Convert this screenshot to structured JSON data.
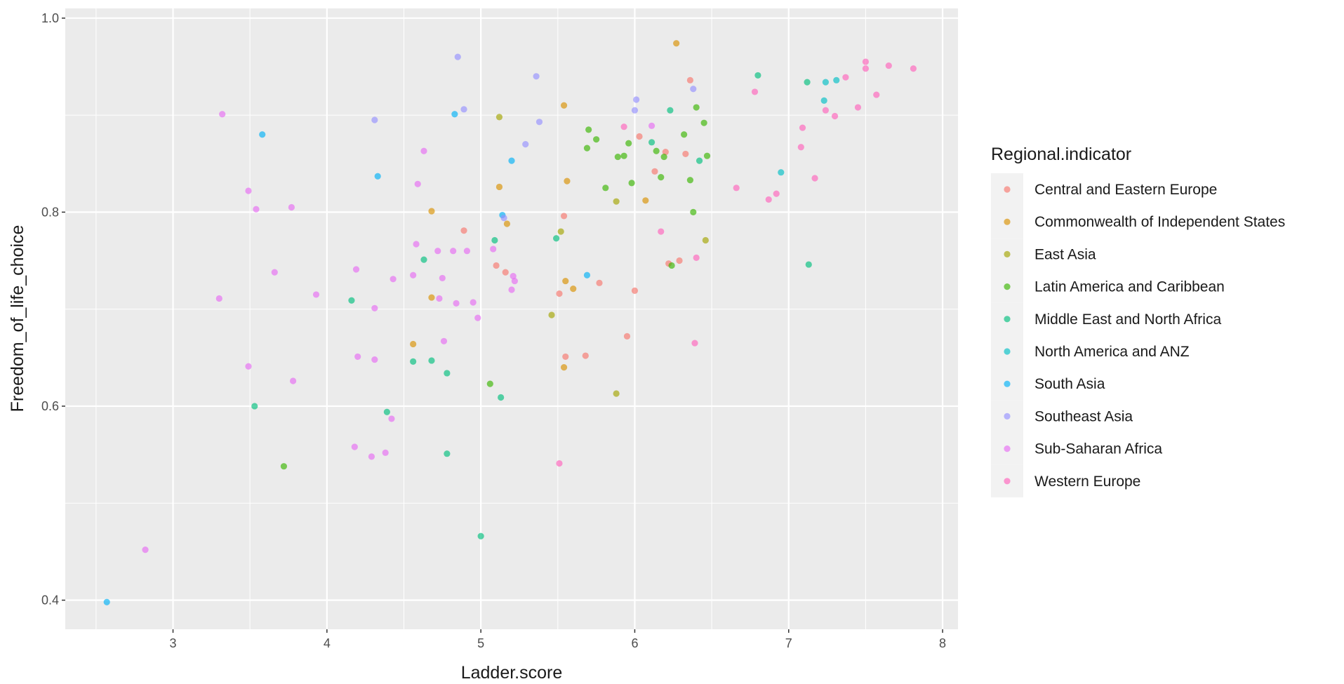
{
  "chart_data": {
    "type": "scatter",
    "title": "",
    "xlabel": "Ladder.score",
    "ylabel": "Freedom_of_life_choice",
    "xlim": [
      2.3,
      8.1
    ],
    "ylim": [
      0.37,
      1.01
    ],
    "x_ticks": [
      3,
      4,
      5,
      6,
      7,
      8
    ],
    "y_ticks": [
      0.4,
      0.6,
      0.8,
      1.0
    ],
    "y_tick_labels": [
      "0.4",
      "0.6",
      "0.8",
      "1.0"
    ],
    "grid": true,
    "legend_position": "right",
    "legend_title": "Regional.indicator",
    "series": [
      {
        "name": "Central and Eastern Europe",
        "color": "#F8766D",
        "points": [
          [
            6.36,
            0.936
          ],
          [
            5.1,
            0.745
          ],
          [
            5.16,
            0.738
          ],
          [
            5.54,
            0.796
          ],
          [
            6.03,
            0.878
          ],
          [
            6.13,
            0.842
          ],
          [
            6.2,
            0.862
          ],
          [
            6.33,
            0.86
          ],
          [
            5.77,
            0.727
          ],
          [
            5.51,
            0.716
          ],
          [
            5.55,
            0.651
          ],
          [
            5.68,
            0.652
          ],
          [
            5.95,
            0.672
          ],
          [
            6.0,
            0.719
          ],
          [
            6.22,
            0.747
          ],
          [
            6.29,
            0.75
          ],
          [
            4.89,
            0.781
          ]
        ]
      },
      {
        "name": "Commonwealth of Independent States",
        "color": "#D89000",
        "points": [
          [
            6.27,
            0.974
          ],
          [
            5.54,
            0.91
          ],
          [
            5.12,
            0.826
          ],
          [
            5.56,
            0.832
          ],
          [
            5.17,
            0.788
          ],
          [
            6.07,
            0.812
          ],
          [
            4.68,
            0.801
          ],
          [
            5.55,
            0.729
          ],
          [
            5.6,
            0.721
          ],
          [
            4.68,
            0.712
          ],
          [
            4.56,
            0.664
          ],
          [
            5.54,
            0.64
          ]
        ]
      },
      {
        "name": "East Asia",
        "color": "#A3A500",
        "points": [
          [
            5.12,
            0.898
          ],
          [
            5.88,
            0.811
          ],
          [
            5.52,
            0.78
          ],
          [
            6.46,
            0.771
          ],
          [
            5.46,
            0.694
          ],
          [
            5.88,
            0.613
          ]
        ]
      },
      {
        "name": "Latin America and Caribbean",
        "color": "#39B600",
        "points": [
          [
            5.7,
            0.885
          ],
          [
            5.75,
            0.875
          ],
          [
            5.69,
            0.866
          ],
          [
            5.89,
            0.857
          ],
          [
            5.93,
            0.858
          ],
          [
            5.96,
            0.871
          ],
          [
            5.98,
            0.83
          ],
          [
            6.14,
            0.863
          ],
          [
            6.17,
            0.836
          ],
          [
            6.19,
            0.857
          ],
          [
            6.32,
            0.88
          ],
          [
            6.36,
            0.833
          ],
          [
            6.4,
            0.908
          ],
          [
            6.45,
            0.892
          ],
          [
            6.47,
            0.858
          ],
          [
            5.81,
            0.825
          ],
          [
            6.38,
            0.8
          ],
          [
            6.24,
            0.745
          ],
          [
            5.06,
            0.623
          ],
          [
            3.72,
            0.538
          ]
        ]
      },
      {
        "name": "Middle East and North Africa",
        "color": "#00BF7D",
        "points": [
          [
            6.8,
            0.941
          ],
          [
            7.12,
            0.934
          ],
          [
            6.23,
            0.905
          ],
          [
            6.11,
            0.872
          ],
          [
            6.42,
            0.853
          ],
          [
            5.09,
            0.771
          ],
          [
            5.49,
            0.773
          ],
          [
            4.63,
            0.751
          ],
          [
            4.16,
            0.709
          ],
          [
            4.56,
            0.646
          ],
          [
            4.68,
            0.647
          ],
          [
            4.78,
            0.634
          ],
          [
            5.13,
            0.609
          ],
          [
            3.53,
            0.6
          ],
          [
            4.39,
            0.594
          ],
          [
            4.78,
            0.551
          ],
          [
            5.0,
            0.466
          ],
          [
            7.13,
            0.746
          ]
        ]
      },
      {
        "name": "North America and ANZ",
        "color": "#00BFC4",
        "points": [
          [
            7.24,
            0.934
          ],
          [
            7.31,
            0.936
          ],
          [
            7.23,
            0.915
          ],
          [
            6.95,
            0.841
          ]
        ]
      },
      {
        "name": "South Asia",
        "color": "#00B0F6",
        "points": [
          [
            3.58,
            0.88
          ],
          [
            4.33,
            0.837
          ],
          [
            4.83,
            0.901
          ],
          [
            5.2,
            0.853
          ],
          [
            5.14,
            0.797
          ],
          [
            5.69,
            0.735
          ],
          [
            2.57,
            0.398
          ]
        ]
      },
      {
        "name": "Southeast Asia",
        "color": "#9590FF",
        "points": [
          [
            4.85,
            0.96
          ],
          [
            5.36,
            0.94
          ],
          [
            4.31,
            0.895
          ],
          [
            4.89,
            0.906
          ],
          [
            5.38,
            0.893
          ],
          [
            5.29,
            0.87
          ],
          [
            6.01,
            0.916
          ],
          [
            6.0,
            0.905
          ],
          [
            6.38,
            0.927
          ],
          [
            5.15,
            0.794
          ]
        ]
      },
      {
        "name": "Sub-Saharan Africa",
        "color": "#E76BF3",
        "points": [
          [
            3.32,
            0.901
          ],
          [
            3.49,
            0.822
          ],
          [
            3.54,
            0.803
          ],
          [
            3.77,
            0.805
          ],
          [
            4.63,
            0.863
          ],
          [
            4.59,
            0.829
          ],
          [
            4.58,
            0.767
          ],
          [
            4.72,
            0.76
          ],
          [
            4.82,
            0.76
          ],
          [
            4.91,
            0.76
          ],
          [
            5.08,
            0.762
          ],
          [
            5.21,
            0.734
          ],
          [
            5.22,
            0.729
          ],
          [
            4.19,
            0.741
          ],
          [
            3.66,
            0.738
          ],
          [
            4.43,
            0.731
          ],
          [
            4.56,
            0.735
          ],
          [
            4.73,
            0.711
          ],
          [
            4.75,
            0.732
          ],
          [
            3.93,
            0.715
          ],
          [
            3.3,
            0.711
          ],
          [
            4.31,
            0.701
          ],
          [
            4.84,
            0.706
          ],
          [
            4.95,
            0.707
          ],
          [
            4.98,
            0.691
          ],
          [
            5.2,
            0.72
          ],
          [
            4.76,
            0.667
          ],
          [
            4.2,
            0.651
          ],
          [
            4.31,
            0.648
          ],
          [
            3.49,
            0.641
          ],
          [
            3.78,
            0.626
          ],
          [
            4.42,
            0.587
          ],
          [
            4.18,
            0.558
          ],
          [
            4.38,
            0.552
          ],
          [
            4.29,
            0.548
          ],
          [
            2.82,
            0.452
          ],
          [
            6.11,
            0.889
          ]
        ]
      },
      {
        "name": "Western Europe",
        "color": "#FF62BC",
        "points": [
          [
            7.5,
            0.955
          ],
          [
            7.5,
            0.948
          ],
          [
            7.65,
            0.951
          ],
          [
            7.81,
            0.948
          ],
          [
            7.37,
            0.939
          ],
          [
            7.57,
            0.921
          ],
          [
            7.45,
            0.908
          ],
          [
            7.24,
            0.905
          ],
          [
            7.3,
            0.899
          ],
          [
            6.78,
            0.924
          ],
          [
            7.09,
            0.887
          ],
          [
            7.08,
            0.867
          ],
          [
            7.17,
            0.835
          ],
          [
            6.66,
            0.825
          ],
          [
            6.92,
            0.819
          ],
          [
            6.87,
            0.813
          ],
          [
            5.93,
            0.888
          ],
          [
            6.17,
            0.78
          ],
          [
            6.4,
            0.753
          ],
          [
            6.39,
            0.665
          ],
          [
            5.51,
            0.541
          ]
        ]
      }
    ]
  }
}
